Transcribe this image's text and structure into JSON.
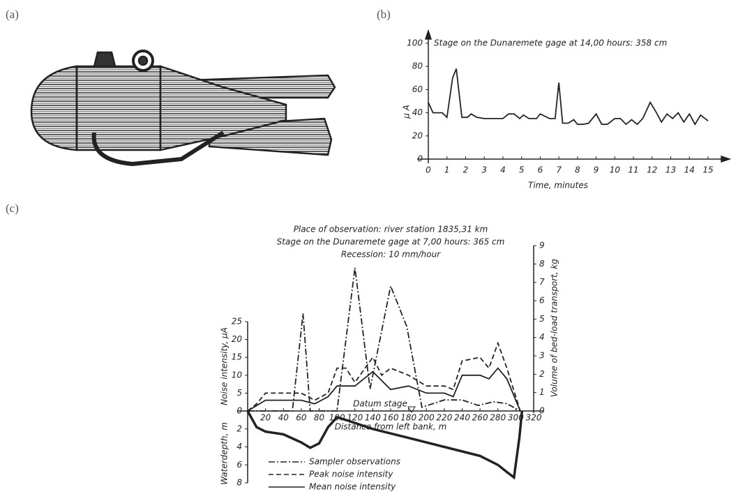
{
  "panel_labels": [
    "(a)",
    "(b)",
    "(c)"
  ],
  "chart_data": [
    {
      "type": "line",
      "title": "Stage on the Dunaremete gage at 14,00 hours: 358 cm",
      "xlabel": "Time, minutes",
      "ylabel": "μ A",
      "xlim": [
        0,
        15
      ],
      "xticks": [
        0,
        1,
        2,
        3,
        4,
        5,
        6,
        7,
        8,
        9,
        10,
        11,
        12,
        13,
        14,
        15
      ],
      "ylim": [
        0,
        100
      ],
      "yticks": [
        0,
        20,
        40,
        60,
        80,
        100
      ],
      "color": "#222222",
      "x": [
        0,
        0.25,
        0.75,
        1,
        1.3,
        1.5,
        1.8,
        2.1,
        2.3,
        2.6,
        3,
        3.5,
        4,
        4.3,
        4.6,
        4.9,
        5.1,
        5.4,
        5.8,
        6,
        6.5,
        6.8,
        7,
        7.2,
        7.5,
        7.8,
        8,
        8.3,
        8.6,
        9,
        9.3,
        9.6,
        10,
        10.3,
        10.6,
        10.9,
        11.2,
        11.5,
        11.9,
        12.2,
        12.5,
        12.8,
        13.1,
        13.4,
        13.7,
        14,
        14.3,
        14.6,
        15
      ],
      "values": [
        49,
        40,
        40,
        36,
        70,
        78,
        36,
        36,
        39,
        36,
        35,
        35,
        35,
        39,
        39,
        35,
        38,
        35,
        35,
        39,
        35,
        35,
        66,
        31,
        31,
        34,
        30,
        30,
        31,
        39,
        30,
        30,
        35,
        35,
        30,
        34,
        30,
        35,
        49,
        41,
        32,
        39,
        35,
        40,
        32,
        39,
        30,
        38,
        33
      ]
    },
    {
      "type": "line",
      "title": [
        "Place of observation: river station 1835,31 km",
        "Stage on the Dunaremete gage at 7,00 hours: 365 cm",
        "Recession: 10 mm/hour"
      ],
      "xlabel": "Distance from left bank, m",
      "ylabel": "Noise intensity, μA",
      "y2label": "Volume of bed-load transport, kg",
      "annotation": "Datum stage",
      "xlim": [
        0,
        320
      ],
      "xticks": [
        20,
        40,
        60,
        80,
        100,
        120,
        140,
        160,
        180,
        200,
        220,
        240,
        260,
        280,
        300,
        320
      ],
      "ylim": [
        0,
        25
      ],
      "yticks": [
        0,
        5,
        10,
        15,
        20,
        25
      ],
      "y2lim": [
        0,
        9
      ],
      "y2ticks": [
        0,
        1,
        2,
        3,
        4,
        5,
        6,
        7,
        8,
        9
      ],
      "series": [
        {
          "name": "Sampler observations",
          "color": "#222222",
          "style": "dashdot",
          "axis": "y2",
          "x": [
            0,
            50,
            62,
            70,
            100,
            120,
            137,
            160,
            178,
            195,
            220,
            240,
            258,
            275,
            290,
            305
          ],
          "values": [
            0,
            0,
            5.3,
            0,
            0,
            7.8,
            1.2,
            6.8,
            4.6,
            0.2,
            0.6,
            0.6,
            0.3,
            0.5,
            0.4,
            0
          ]
        },
        {
          "name": "Peak noise intensity",
          "color": "#222222",
          "style": "dashed",
          "x": [
            0,
            10,
            20,
            40,
            60,
            75,
            90,
            100,
            110,
            120,
            140,
            150,
            160,
            180,
            200,
            220,
            230,
            240,
            260,
            270,
            280,
            290,
            305
          ],
          "values": [
            0,
            2,
            5,
            5,
            5,
            3,
            5,
            12,
            12,
            8,
            15,
            10,
            12,
            10,
            7,
            7,
            6,
            14,
            15,
            12,
            19,
            12,
            0
          ]
        },
        {
          "name": "Mean noise intensity",
          "color": "#222222",
          "style": "solid",
          "x": [
            0,
            10,
            20,
            40,
            60,
            75,
            90,
            100,
            110,
            120,
            140,
            160,
            180,
            200,
            220,
            230,
            240,
            260,
            270,
            280,
            290,
            305
          ],
          "values": [
            0,
            1.5,
            3,
            3,
            3,
            2,
            4,
            7,
            7,
            7,
            11,
            6,
            7,
            5,
            5,
            4,
            10,
            10,
            9,
            12,
            9,
            0
          ]
        }
      ]
    },
    {
      "type": "line",
      "ylabel": "Waterdepth, m",
      "xlim": [
        0,
        320
      ],
      "ylim": [
        0,
        8
      ],
      "yticks": [
        2,
        4,
        6,
        8
      ],
      "inverted": true,
      "color": "#222222",
      "x": [
        0,
        10,
        20,
        40,
        60,
        70,
        80,
        90,
        100,
        110,
        140,
        180,
        220,
        260,
        280,
        290,
        298,
        304,
        307
      ],
      "values": [
        0,
        1.8,
        2.3,
        2.6,
        3.5,
        4.1,
        3.6,
        1.8,
        0.7,
        1,
        2,
        3,
        4,
        5,
        6,
        6.8,
        7.4,
        3,
        0
      ]
    }
  ]
}
